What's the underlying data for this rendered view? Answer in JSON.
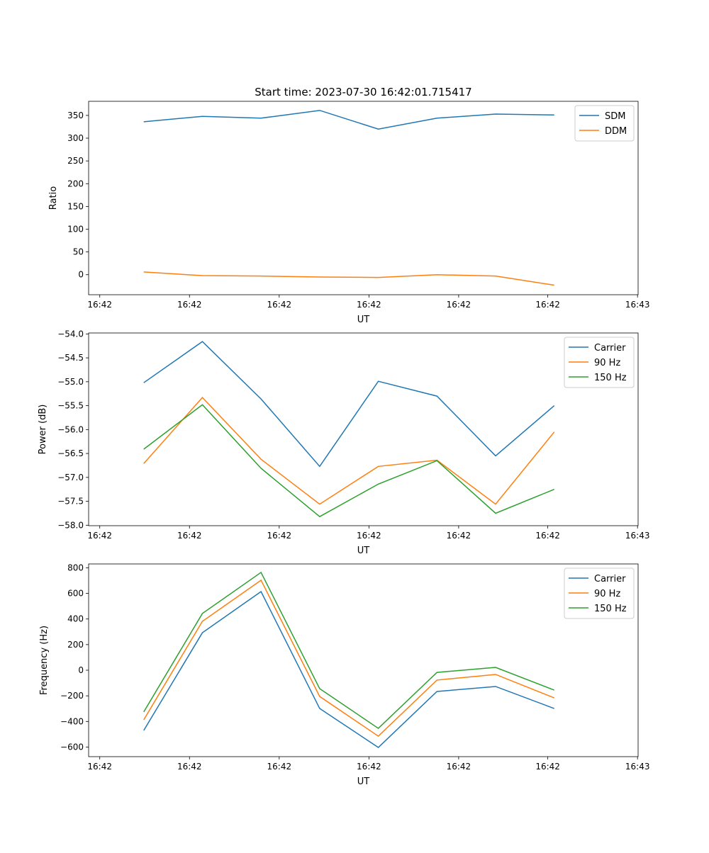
{
  "chart_data": [
    {
      "type": "line",
      "title": "Start time: 2023-07-30 16:42:01.715417",
      "xlabel": "UT",
      "ylabel": "Ratio",
      "x": [
        0,
        1,
        2,
        3,
        4,
        5,
        6,
        7
      ],
      "xlim": [
        -0.94,
        8.43
      ],
      "xticks": [
        -0.75,
        0.78,
        2.31,
        3.84,
        5.37,
        6.89,
        8.42
      ],
      "xtick_labels": [
        "16:42",
        "16:42",
        "16:42",
        "16:42",
        "16:42",
        "16:42",
        "16:43"
      ],
      "ylim": [
        -44,
        381
      ],
      "yticks": [
        0,
        50,
        100,
        150,
        200,
        250,
        300,
        350
      ],
      "ytick_labels": [
        "0",
        "50",
        "100",
        "150",
        "200",
        "250",
        "300",
        "350"
      ],
      "legend": "top-right",
      "series": [
        {
          "name": "SDM",
          "color": "#1f77b4",
          "values": [
            336,
            348,
            344,
            361,
            320,
            344,
            353,
            351
          ]
        },
        {
          "name": "DDM",
          "color": "#ff7f0e",
          "values": [
            6,
            -2,
            -3,
            -5,
            -6,
            0,
            -3,
            -23
          ]
        }
      ]
    },
    {
      "type": "line",
      "title": "",
      "xlabel": "UT",
      "ylabel": "Power (dB)",
      "x": [
        0,
        1,
        2,
        3,
        4,
        5,
        6,
        7
      ],
      "xlim": [
        -0.94,
        8.43
      ],
      "xticks": [
        -0.75,
        0.78,
        2.31,
        3.84,
        5.37,
        6.89,
        8.42
      ],
      "xtick_labels": [
        "16:42",
        "16:42",
        "16:42",
        "16:42",
        "16:42",
        "16:42",
        "16:43"
      ],
      "ylim": [
        -58.01,
        -53.98
      ],
      "yticks": [
        -58.0,
        -57.5,
        -57.0,
        -56.5,
        -56.0,
        -55.5,
        -55.0,
        -54.5,
        -54.0
      ],
      "ytick_labels": [
        "−58.0",
        "−57.5",
        "−57.0",
        "−56.5",
        "−56.0",
        "−55.5",
        "−55.0",
        "−54.5",
        "−54.0"
      ],
      "legend": "top-right",
      "series": [
        {
          "name": "Carrier",
          "color": "#1f77b4",
          "values": [
            -55.02,
            -54.16,
            -55.36,
            -56.77,
            -54.99,
            -55.3,
            -56.55,
            -55.5
          ]
        },
        {
          "name": "90 Hz",
          "color": "#ff7f0e",
          "values": [
            -56.71,
            -55.33,
            -56.62,
            -57.56,
            -56.77,
            -56.64,
            -57.56,
            -56.05
          ]
        },
        {
          "name": "150 Hz",
          "color": "#2ca02c",
          "values": [
            -56.41,
            -55.48,
            -56.81,
            -57.82,
            -57.14,
            -56.65,
            -57.75,
            -57.25
          ]
        }
      ]
    },
    {
      "type": "line",
      "title": "",
      "xlabel": "UT",
      "ylabel": "Frequency (Hz)",
      "x": [
        0,
        1,
        2,
        3,
        4,
        5,
        6,
        7
      ],
      "xlim": [
        -0.94,
        8.43
      ],
      "xticks": [
        -0.75,
        0.78,
        2.31,
        3.84,
        5.37,
        6.89,
        8.42
      ],
      "xtick_labels": [
        "16:42",
        "16:42",
        "16:42",
        "16:42",
        "16:42",
        "16:42",
        "16:43"
      ],
      "ylim": [
        -675,
        830
      ],
      "yticks": [
        -600,
        -400,
        -200,
        0,
        200,
        400,
        600,
        800
      ],
      "ytick_labels": [
        "−600",
        "−400",
        "−200",
        "0",
        "200",
        "400",
        "600",
        "800"
      ],
      "legend": "top-right",
      "series": [
        {
          "name": "Carrier",
          "color": "#1f77b4",
          "values": [
            -470,
            293,
            614,
            -299,
            -603,
            -166,
            -127,
            -299
          ]
        },
        {
          "name": "90 Hz",
          "color": "#ff7f0e",
          "values": [
            -387,
            382,
            703,
            -205,
            -515,
            -77,
            -33,
            -216
          ]
        },
        {
          "name": "150 Hz",
          "color": "#2ca02c",
          "values": [
            -326,
            443,
            764,
            -144,
            -454,
            -17,
            22,
            -155
          ]
        }
      ]
    }
  ]
}
